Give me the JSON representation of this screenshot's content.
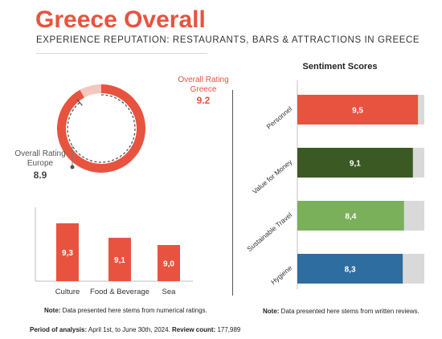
{
  "header": {
    "title": "Greece Overall",
    "subtitle": "EXPERIENCE REPUTATION: RESTAURANTS, BARS & ATTRACTIONS IN GREECE"
  },
  "colors": {
    "accent": "#e8533f",
    "accent_light": "#f5c6bd",
    "dark_green": "#3b5a23",
    "light_green": "#7ab05a",
    "blue": "#2e6da0",
    "track": "#d9d9d9",
    "europe_label": "#555555"
  },
  "gauge": {
    "greece_label_line1": "Overall Rating",
    "greece_label_line2": "Greece",
    "greece_value": "9.2",
    "europe_label_line1": "Overall Rating",
    "europe_label_line2": "Europe",
    "europe_value": "8.9"
  },
  "chart_data": [
    {
      "type": "pie",
      "title": "",
      "scale_max": 10,
      "series": [
        {
          "name": "Greece",
          "value": 9.2
        },
        {
          "name": "Europe",
          "value": 8.9
        }
      ]
    },
    {
      "type": "bar",
      "orientation": "vertical",
      "categories": [
        "Culture",
        "Food & Beverage",
        "Sea"
      ],
      "values": [
        9.3,
        9.1,
        9.0
      ],
      "labels": [
        "9,3",
        "9,1",
        "9,0"
      ],
      "ylim": [
        8.5,
        9.5
      ],
      "note_label": "Note:",
      "note": " Data presented here stems from numerical ratings."
    },
    {
      "type": "bar",
      "orientation": "horizontal",
      "title": "Sentiment Scores",
      "categories": [
        "Personnel",
        "Value for Money",
        "Sustainable Travel",
        "Hygiene"
      ],
      "values": [
        9.5,
        9.1,
        8.4,
        8.3
      ],
      "labels": [
        "9,5",
        "9,1",
        "8,4",
        "8,3"
      ],
      "colors": [
        "#e8533f",
        "#3b5a23",
        "#7ab05a",
        "#2e6da0"
      ],
      "xlim": [
        0,
        10
      ],
      "note_label": "Note:",
      "note": " Data presented here stems from written reviews."
    }
  ],
  "footer": {
    "period_label": "Period of analysis:",
    "period_value": " April 1st, to June 30th, 2024.",
    "count_label": "Review count:",
    "count_value": " 177,989"
  }
}
